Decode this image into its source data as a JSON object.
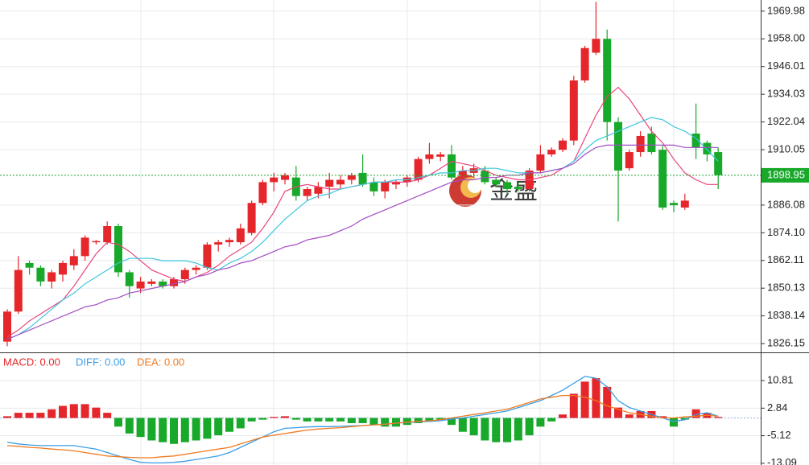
{
  "chart_data": [
    {
      "type": "candlestick",
      "ylim": [
        1822.7,
        1974.8
      ],
      "yticks": [
        1969.98,
        {
          "value": 1958.0,
          "label": "1958.00"
        },
        1946.01,
        1934.03,
        1922.04,
        1910.05,
        1886.08,
        {
          "value": 1874.1,
          "label": "1874.10"
        },
        1862.11,
        1850.13,
        1838.14,
        1826.15
      ],
      "up_color": "#e5262a",
      "down_color": "#18a82a",
      "candles": {
        "open": [
          1827,
          1840,
          1861,
          1859,
          1853,
          1856,
          1860,
          1864,
          1870,
          1870,
          1877,
          1857,
          1850,
          1852,
          1853,
          1851,
          1854,
          1858,
          1859,
          1869,
          1870,
          1870,
          1874,
          1887,
          1896,
          1897,
          1898,
          1890,
          1891,
          1894,
          1895,
          1897,
          1900,
          1896,
          1892,
          1895,
          1896,
          1897,
          1906,
          1907,
          1908,
          1899,
          1900,
          1901,
          1897,
          1896,
          1894,
          1893,
          1901,
          1908,
          1910,
          1914,
          1940,
          1952,
          1958,
          1922,
          1902,
          1909,
          1917,
          1910,
          1887,
          1885,
          1917,
          1913,
          1909
        ],
        "high": [
          1841,
          1864,
          1862,
          1860,
          1858,
          1862,
          1867,
          1873,
          1871,
          1879,
          1878,
          1858,
          1855,
          1854,
          1854,
          1855,
          1859,
          1860,
          1870,
          1871,
          1872,
          1878,
          1888,
          1897,
          1900,
          1900,
          1903,
          1894,
          1896,
          1900,
          1899,
          1900,
          1908,
          1898,
          1897,
          1897,
          1899,
          1907,
          1913,
          1909,
          1912,
          1903,
          1904,
          1903,
          1898,
          1897,
          1896,
          1902,
          1912,
          1911,
          1915,
          1942,
          1955,
          1974,
          1962,
          1924,
          1910,
          1918,
          1920,
          1912,
          1888,
          1891,
          1930,
          1914,
          1911
        ],
        "low": [
          1825,
          1839,
          1856,
          1851,
          1850,
          1853,
          1858,
          1862,
          1869,
          1869,
          1855,
          1846,
          1848,
          1851,
          1850,
          1850,
          1852,
          1856,
          1858,
          1866,
          1868,
          1869,
          1873,
          1886,
          1892,
          1895,
          1888,
          1888,
          1889,
          1889,
          1893,
          1895,
          1894,
          1890,
          1889,
          1893,
          1894,
          1896,
          1904,
          1905,
          1897,
          1897,
          1898,
          1895,
          1894,
          1891,
          1892,
          1892,
          1900,
          1907,
          1909,
          1912,
          1939,
          1951,
          1914,
          1879,
          1901,
          1907,
          1908,
          1884,
          1883,
          1884,
          1906,
          1905,
          1893
        ],
        "close": [
          1840,
          1858,
          1859,
          1853,
          1857,
          1861,
          1864,
          1872,
          1870.5,
          1877,
          1857,
          1851,
          1853,
          1853,
          1851,
          1854,
          1858,
          1859,
          1869,
          1870,
          1871,
          1876,
          1887,
          1896,
          1898,
          1899,
          1890,
          1893,
          1894,
          1897,
          1897,
          1899,
          1895,
          1892,
          1896,
          1896,
          1898,
          1906,
          1908,
          1908,
          1898,
          1901,
          1902,
          1896,
          1895,
          1893,
          1893,
          1901,
          1908,
          1910,
          1914,
          1940,
          1954,
          1958,
          1922,
          1901,
          1909,
          1916,
          1909,
          1885,
          1886,
          1888,
          1911,
          1908,
          1899
        ]
      },
      "series": [
        {
          "color": "#e8457a",
          "values": [
            1829,
            1832,
            1836,
            1839,
            1842,
            1845,
            1851,
            1858,
            1865,
            1870,
            1869,
            1866,
            1862,
            1858,
            1856,
            1854,
            1853,
            1855,
            1857,
            1860,
            1864,
            1867,
            1870,
            1876,
            1883,
            1892,
            1894,
            1895,
            1894,
            1893,
            1893,
            1894,
            1895,
            1896,
            1896,
            1896,
            1896,
            1897,
            1899,
            1902,
            1905,
            1904,
            1903,
            1901,
            1899,
            1898,
            1897,
            1897,
            1898,
            1899,
            1902,
            1905,
            1915,
            1925,
            1933,
            1937,
            1932,
            1925,
            1918,
            1913,
            1906,
            1900,
            1897,
            1895,
            1895
          ]
        },
        {
          "color": "#3cc6de",
          "values": [
            1828,
            1830,
            1833,
            1837,
            1841,
            1845,
            1848,
            1852,
            1855,
            1858,
            1861,
            1863,
            1863,
            1863,
            1862,
            1862,
            1862,
            1861,
            1859,
            1858,
            1861,
            1863,
            1866,
            1870,
            1875,
            1880,
            1884,
            1888,
            1890,
            1891,
            1893,
            1894,
            1895,
            1896,
            1896,
            1897,
            1897,
            1898,
            1899,
            1900,
            1900,
            1901,
            1901,
            1902,
            1902,
            1901,
            1900,
            1900,
            1900,
            1901,
            1902,
            1905,
            1910,
            1914,
            1916,
            1918,
            1920,
            1922,
            1924,
            1923,
            1920,
            1918,
            1915,
            1910,
            1905
          ]
        },
        {
          "color": "#a24cc2",
          "values": [
            1828,
            1830,
            1832,
            1834,
            1836,
            1838,
            1840,
            1842,
            1843,
            1845,
            1846,
            1848,
            1849,
            1850,
            1851,
            1852,
            1853,
            1855,
            1856,
            1858,
            1859,
            1861,
            1862,
            1864,
            1866,
            1868,
            1869,
            1871,
            1872,
            1873,
            1875,
            1877,
            1880,
            1882,
            1884,
            1886,
            1888,
            1890,
            1892,
            1894,
            1896,
            1897,
            1897,
            1898,
            1898,
            1899,
            1899,
            1900,
            1900,
            1901,
            1902,
            1904,
            1908,
            1911,
            1912,
            1912,
            1912,
            1912,
            1912,
            1912,
            1912,
            1911,
            1911,
            1911,
            1911
          ]
        }
      ],
      "last_price": 1898.95,
      "last_price_color": "#18a82a",
      "watermark": "金盛"
    },
    {
      "type": "macd",
      "ylim": [
        -13.6,
        18.5
      ],
      "yticks": [
        10.81,
        2.84,
        -5.12,
        -13.09
      ],
      "legend": [
        "MACD: 0.00",
        "DIFF: 0.00",
        "DEA: 0.00"
      ],
      "legend_colors": [
        "#e5262a",
        "#3a9ee6",
        "#f07a20"
      ],
      "up_color": "#e5262a",
      "down_color": "#18a82a",
      "histogram": [
        0.5,
        1.5,
        1.5,
        1.5,
        2.5,
        3.5,
        4,
        4,
        3,
        1.5,
        -2.5,
        -4.5,
        -5.5,
        -6.5,
        -7,
        -7.5,
        -7,
        -6.5,
        -6,
        -5,
        -4,
        -3,
        -1,
        -0.5,
        0.3,
        0.5,
        -0.5,
        -1,
        -1,
        -1,
        -1,
        -1.5,
        -1.5,
        -2,
        -2.5,
        -2.5,
        -2,
        -1.5,
        -1,
        -0.5,
        -2,
        -4,
        -5,
        -6.5,
        -7,
        -7,
        -6.5,
        -5,
        -2.5,
        -1,
        1,
        7,
        10.5,
        11.5,
        9,
        3,
        1,
        2,
        2,
        0.5,
        -2.5,
        -0.5,
        2.5,
        1.5,
        0.3
      ],
      "series": [
        {
          "name": "DIFF",
          "color": "#3a9ee6",
          "values": [
            -7,
            -7.5,
            -7.8,
            -8,
            -8,
            -8,
            -8,
            -8.5,
            -9,
            -10,
            -11,
            -12,
            -12.8,
            -13,
            -13,
            -12.8,
            -12.5,
            -12,
            -11.5,
            -11,
            -10,
            -8.5,
            -7,
            -5.5,
            -4,
            -3,
            -2.8,
            -2.6,
            -2.5,
            -2.5,
            -2.4,
            -2.3,
            -2.2,
            -2,
            -1.8,
            -1.5,
            -1.3,
            -1.1,
            -1,
            -0.8,
            -0.3,
            0,
            0.5,
            1,
            1.5,
            2,
            3,
            4,
            5,
            6.5,
            8,
            10,
            12,
            11.5,
            9,
            5,
            3,
            2,
            1,
            0,
            -1,
            -0.5,
            1,
            1.5,
            0.5
          ]
        },
        {
          "name": "DEA",
          "color": "#f07a20",
          "values": [
            -8,
            -8.2,
            -8.5,
            -8.7,
            -9,
            -9.2,
            -9.5,
            -10,
            -10.5,
            -11,
            -11.2,
            -11.4,
            -11.5,
            -11.5,
            -11.2,
            -11,
            -10.5,
            -10,
            -9.5,
            -9,
            -8.5,
            -7.5,
            -6.5,
            -5.5,
            -5,
            -4.5,
            -4,
            -3.5,
            -3.2,
            -3,
            -2.8,
            -2.5,
            -2.2,
            -2,
            -1.8,
            -1.5,
            -1.2,
            -1,
            -0.8,
            -0.5,
            0,
            0.5,
            1,
            1.5,
            2,
            2.5,
            3.5,
            4.5,
            5.5,
            6,
            6.5,
            6.5,
            6,
            5,
            3.5,
            2.5,
            1.5,
            1,
            0.5,
            0,
            0,
            0.3,
            0.5,
            0.8,
            0.5
          ]
        }
      ]
    }
  ]
}
